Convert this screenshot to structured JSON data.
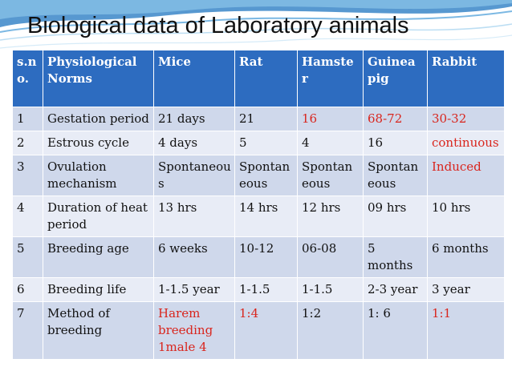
{
  "slide": {
    "title": "Biological data of Laboratory animals"
  },
  "table": {
    "headers": [
      "s.no.",
      "Physiological Norms",
      "Mice",
      "Rat",
      "Hamster",
      "Guinea pig",
      "Rabbit"
    ],
    "rows": [
      [
        "1",
        "Gestation period",
        "21 days",
        "21",
        "16",
        "68-72",
        "30-32"
      ],
      [
        "2",
        "Estrous cycle",
        "4 days",
        " 5",
        "4",
        "16",
        "continuous"
      ],
      [
        "3",
        "Ovulation mechanism",
        "Spontaneous",
        "Spontaneous",
        "Spontaneous",
        "Spontaneous",
        "Induced"
      ],
      [
        "4",
        "Duration of heat period",
        "13 hrs",
        "14 hrs",
        "12 hrs",
        "09 hrs",
        "10 hrs"
      ],
      [
        "5",
        "Breeding age",
        "6 weeks",
        "10-12",
        "06-08",
        "5 months",
        "6 months"
      ],
      [
        "6",
        "Breeding life",
        "1-1.5 year",
        "1-1.5",
        "1-1.5",
        "2-3 year",
        "3 year"
      ],
      [
        "7",
        "Method of breeding",
        "Harem breeding 1male 4",
        "1:4",
        "1:2",
        "1: 6",
        "1:1"
      ]
    ]
  },
  "colors": {
    "header_bg": "#2d6cc0",
    "row_odd_bg": "#cfd8eb",
    "row_even_bg": "#e8ecf6",
    "highlight_text": "#d9251d"
  }
}
